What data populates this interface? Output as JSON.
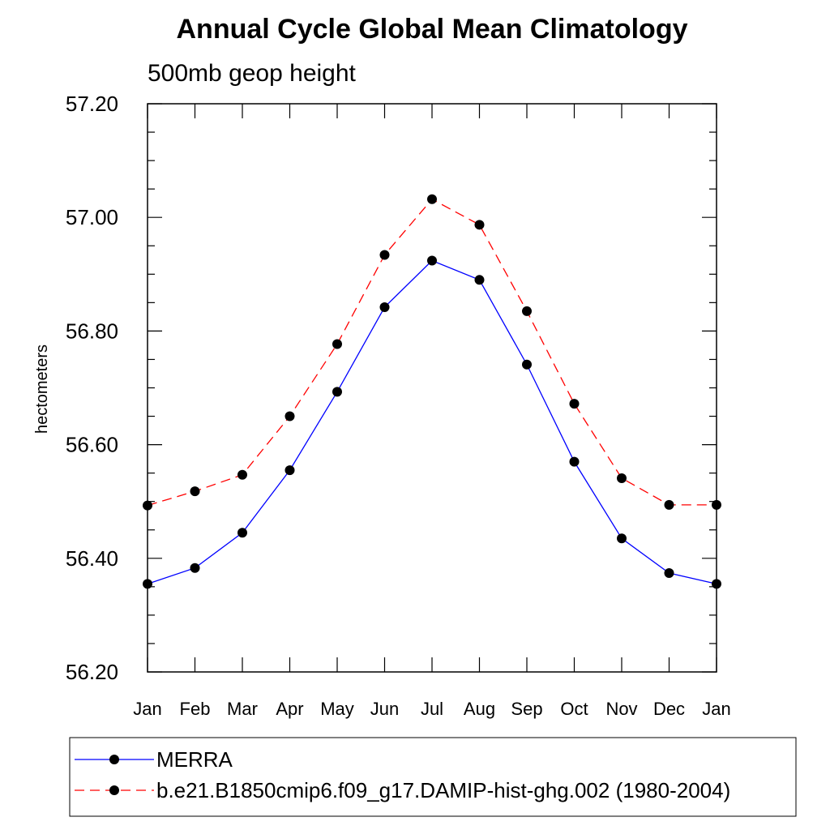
{
  "chart_data": {
    "type": "line",
    "title": "Annual Cycle Global Mean Climatology",
    "subtitle": "500mb geop height",
    "xlabel": "",
    "ylabel": "hectometers",
    "categories": [
      "Jan",
      "Feb",
      "Mar",
      "Apr",
      "May",
      "Jun",
      "Jul",
      "Aug",
      "Sep",
      "Oct",
      "Nov",
      "Dec",
      "Jan"
    ],
    "y_tick_labels": [
      "56.20",
      "56.40",
      "56.60",
      "56.80",
      "57.00",
      "57.20"
    ],
    "ylim": [
      56.2,
      57.2
    ],
    "y_major_step": 0.2,
    "y_minor_step": 0.05,
    "grid": false,
    "legend_position": "bottom",
    "series": [
      {
        "name": "MERRA",
        "color": "#0000ff",
        "line_style": "solid",
        "marker": "filled-circle",
        "values": [
          56.355,
          56.383,
          56.445,
          56.555,
          56.693,
          56.842,
          56.924,
          56.89,
          56.741,
          56.57,
          56.435,
          56.374,
          56.355
        ]
      },
      {
        "name": "b.e21.B1850cmip6.f09_g17.DAMIP-hist-ghg.002 (1980-2004)",
        "color": "#ff0000",
        "line_style": "dashed",
        "marker": "filled-circle",
        "values": [
          56.493,
          56.518,
          56.547,
          56.65,
          56.777,
          56.934,
          57.032,
          56.987,
          56.835,
          56.672,
          56.541,
          56.494,
          56.494
        ]
      }
    ]
  }
}
